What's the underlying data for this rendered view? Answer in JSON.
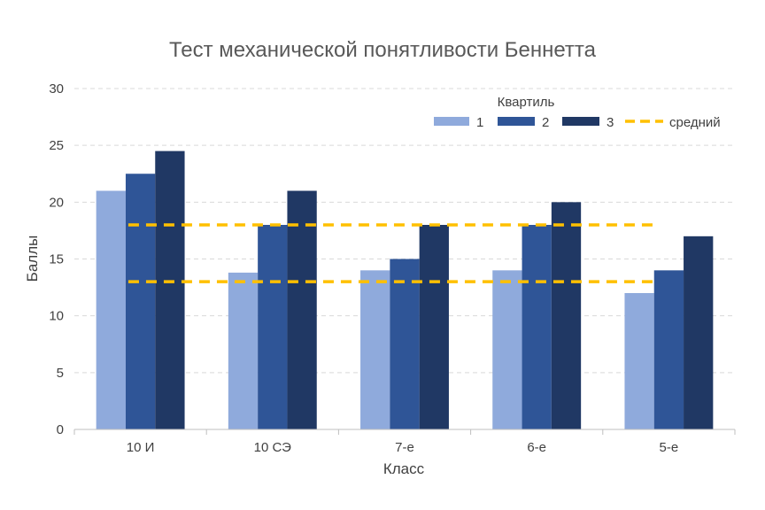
{
  "chart_data": {
    "type": "bar",
    "title": "Тест механической понятливости Беннетта",
    "xlabel": "Класс",
    "ylabel": "Баллы",
    "ylim": [
      0,
      30
    ],
    "yticks": [
      0,
      5,
      10,
      15,
      20,
      25,
      30
    ],
    "grid": true,
    "categories": [
      "10 И",
      "10 СЭ",
      "7-е",
      "6-е",
      "5-е"
    ],
    "legend_title": "Квартиль",
    "legend_position": "top-right",
    "series": [
      {
        "name": "1",
        "color": "#8faadc",
        "values": [
          21,
          13.8,
          14,
          14,
          12
        ]
      },
      {
        "name": "2",
        "color": "#2f5597",
        "values": [
          22.5,
          18,
          15,
          18,
          14
        ]
      },
      {
        "name": "3",
        "color": "#203864",
        "values": [
          24.5,
          21,
          18,
          20,
          17
        ]
      }
    ],
    "reference_lines": {
      "name": "средний",
      "color": "#ffc000",
      "style": "dashed",
      "values": [
        18,
        13
      ]
    }
  }
}
